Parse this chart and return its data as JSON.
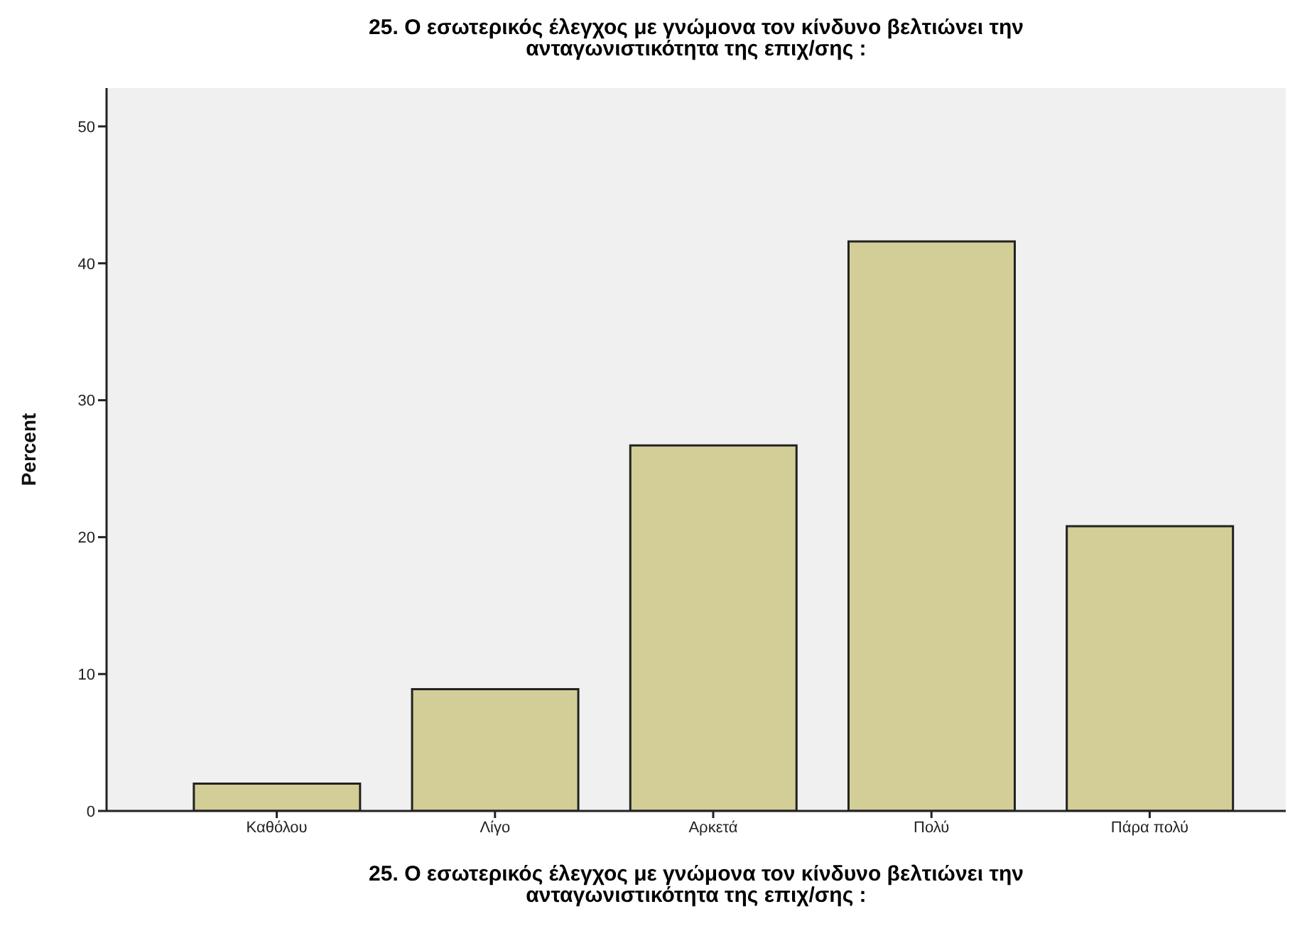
{
  "chart_data": {
    "type": "bar",
    "title": "25. Ο εσωτερικός έλεγχος με γνώμονα τον κίνδυνο βελτιώνει την ανταγωνιστικότητα της επιχ/σης :",
    "xlabel": "25. Ο εσωτερικός έλεγχος με γνώμονα τον κίνδυνο βελτιώνει την ανταγωνιστικότητα της επιχ/σης :",
    "ylabel": "Percent",
    "categories": [
      "Καθόλου",
      "Λίγο",
      "Αρκετά",
      "Πολύ",
      "Πάρα πολύ"
    ],
    "values": [
      2.0,
      8.9,
      26.7,
      41.6,
      20.8
    ],
    "color": "#d3ce97",
    "ylim": [
      0,
      52.8
    ],
    "yticks": [
      0,
      10,
      20,
      30,
      40,
      50
    ],
    "grid": false
  }
}
